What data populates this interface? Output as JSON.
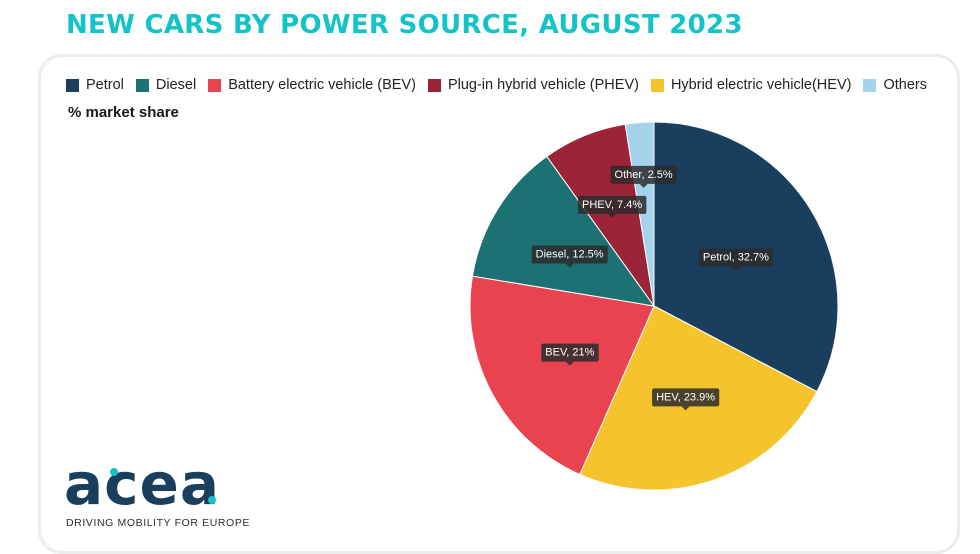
{
  "chart_data": {
    "type": "pie",
    "title": "NEW CARS BY POWER SOURCE, AUGUST 2023",
    "subtitle": "% market share",
    "legend": [
      {
        "label": "Petrol",
        "color": "#1a3f5e"
      },
      {
        "label": "Diesel",
        "color": "#1c7172"
      },
      {
        "label": "Battery electric vehicle (BEV)",
        "color": "#e8434f"
      },
      {
        "label": "Plug-in hybrid vehicle (PHEV)",
        "color": "#9b2438"
      },
      {
        "label": "Hybrid electric vehicle(HEV)",
        "color": "#f7c32d"
      },
      {
        "label": "Others",
        "color": "#a6d3ec"
      }
    ],
    "slices": [
      {
        "name": "Petrol",
        "value": 32.7,
        "label": "Petrol, 32.7%",
        "color": "#1a3f5e"
      },
      {
        "name": "HEV",
        "value": 23.9,
        "label": "HEV, 23.9%",
        "color": "#f7c32d"
      },
      {
        "name": "BEV",
        "value": 21,
        "label": "BEV, 21%",
        "color": "#e8434f"
      },
      {
        "name": "Diesel",
        "value": 12.5,
        "label": "Diesel, 12.5%",
        "color": "#1c7172"
      },
      {
        "name": "PHEV",
        "value": 7.4,
        "label": "PHEV, 7.4%",
        "color": "#9b2438"
      },
      {
        "name": "Other",
        "value": 2.5,
        "label": "Other, 2.5%",
        "color": "#a6d3ec"
      }
    ],
    "legend_position": "top-left"
  },
  "logo": {
    "text": "acea",
    "tagline": "DRIVING MOBILITY FOR EUROPE",
    "color": "#1a3f5e",
    "accent": "#12c3c8"
  }
}
